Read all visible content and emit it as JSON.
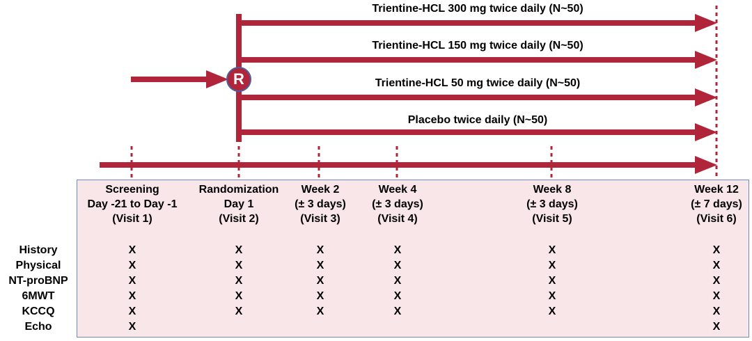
{
  "arms": [
    {
      "label": "Trientine-HCL 300 mg twice daily (N~50)"
    },
    {
      "label": "Trientine-HCL 150 mg twice daily (N~50)"
    },
    {
      "label": "Trientine-HCL 50 mg twice daily (N~50)"
    },
    {
      "label": "Placebo twice daily (N~50)"
    }
  ],
  "randomization_badge": "R",
  "visits": [
    {
      "lines": [
        "Screening",
        "Day -21 to Day -1",
        "(Visit 1)"
      ]
    },
    {
      "lines": [
        "Randomization",
        "Day 1",
        "(Visit 2)"
      ]
    },
    {
      "lines": [
        "Week 2",
        "(± 3 days)",
        "(Visit 3)"
      ]
    },
    {
      "lines": [
        "Week 4",
        "(± 3 days)",
        "(Visit 4)"
      ]
    },
    {
      "lines": [
        "Week 8",
        "(± 3 days)",
        "(Visit 5)"
      ]
    },
    {
      "lines": [
        "Week 12",
        "(± 7 days)",
        "(Visit 6)"
      ]
    }
  ],
  "assessments": [
    {
      "name": "History",
      "marks": [
        "X",
        "X",
        "X",
        "X",
        "X",
        "X"
      ]
    },
    {
      "name": "Physical",
      "marks": [
        "X",
        "X",
        "X",
        "X",
        "X",
        "X"
      ]
    },
    {
      "name": "NT-proBNP",
      "marks": [
        "X",
        "X",
        "X",
        "X",
        "X",
        "X"
      ]
    },
    {
      "name": "6MWT",
      "marks": [
        "X",
        "X",
        "X",
        "X",
        "X",
        "X"
      ]
    },
    {
      "name": "KCCQ",
      "marks": [
        "X",
        "X",
        "X",
        "X",
        "X",
        "X"
      ]
    },
    {
      "name": "Echo",
      "marks": [
        "X",
        "",
        "",
        "",
        "",
        "X"
      ]
    }
  ],
  "colors": {
    "arrow": "#b0253a",
    "panel_fill": "#f8e6e8",
    "panel_border": "#6d8bbd",
    "badge_border": "#4a5fa0"
  }
}
